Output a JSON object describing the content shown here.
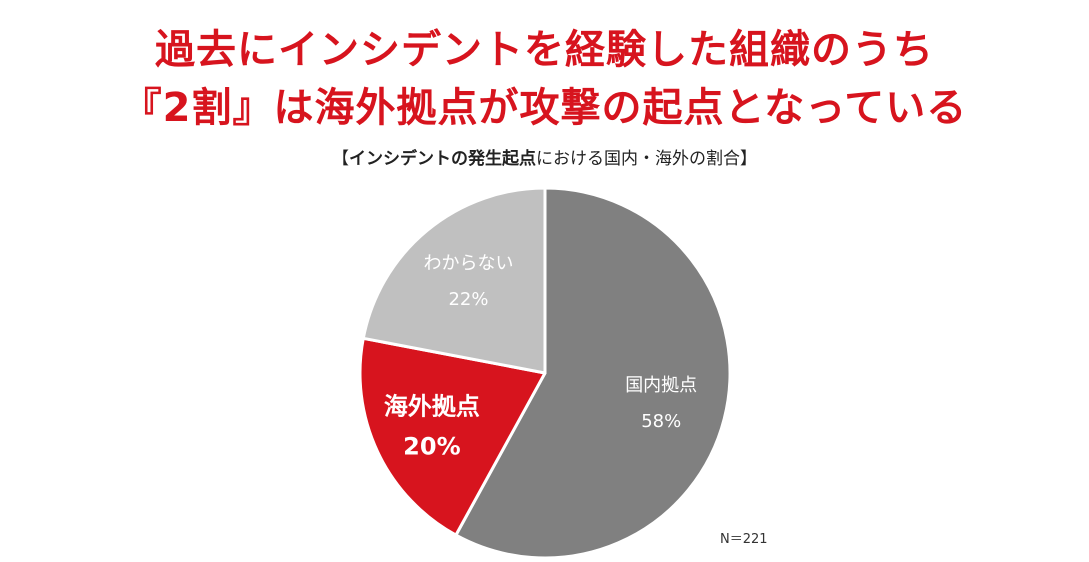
{
  "headline": {
    "line1": "過去にインシデントを経験した組織のうち",
    "line2": "『2割』は海外拠点が攻撃の起点となっている"
  },
  "subtitle": {
    "open": "【",
    "bold": "インシデントの発生起点",
    "rest": "における国内・海外の割合",
    "close": "】"
  },
  "note": "N＝221",
  "colors": {
    "headline": "#d7141e",
    "domestic": "#808080",
    "overseas": "#d7141e",
    "unknown": "#c0c0c0"
  },
  "chart_data": {
    "type": "pie",
    "title": "【インシデントの発生起点における国内・海外の割合】",
    "start": "12 o'clock, clockwise",
    "slices": [
      {
        "name": "国内拠点",
        "value": 58,
        "value_label": "58%",
        "color": "#808080",
        "text_color": "#ffffff",
        "bold": false
      },
      {
        "name": "海外拠点",
        "value": 20,
        "value_label": "20%",
        "color": "#d7141e",
        "text_color": "#ffffff",
        "bold": true
      },
      {
        "name": "わからない",
        "value": 22,
        "value_label": "22%",
        "color": "#c0c0c0",
        "text_color": "#ffffff",
        "bold": false
      }
    ],
    "highlighted": "海外拠点",
    "legend": "none"
  }
}
